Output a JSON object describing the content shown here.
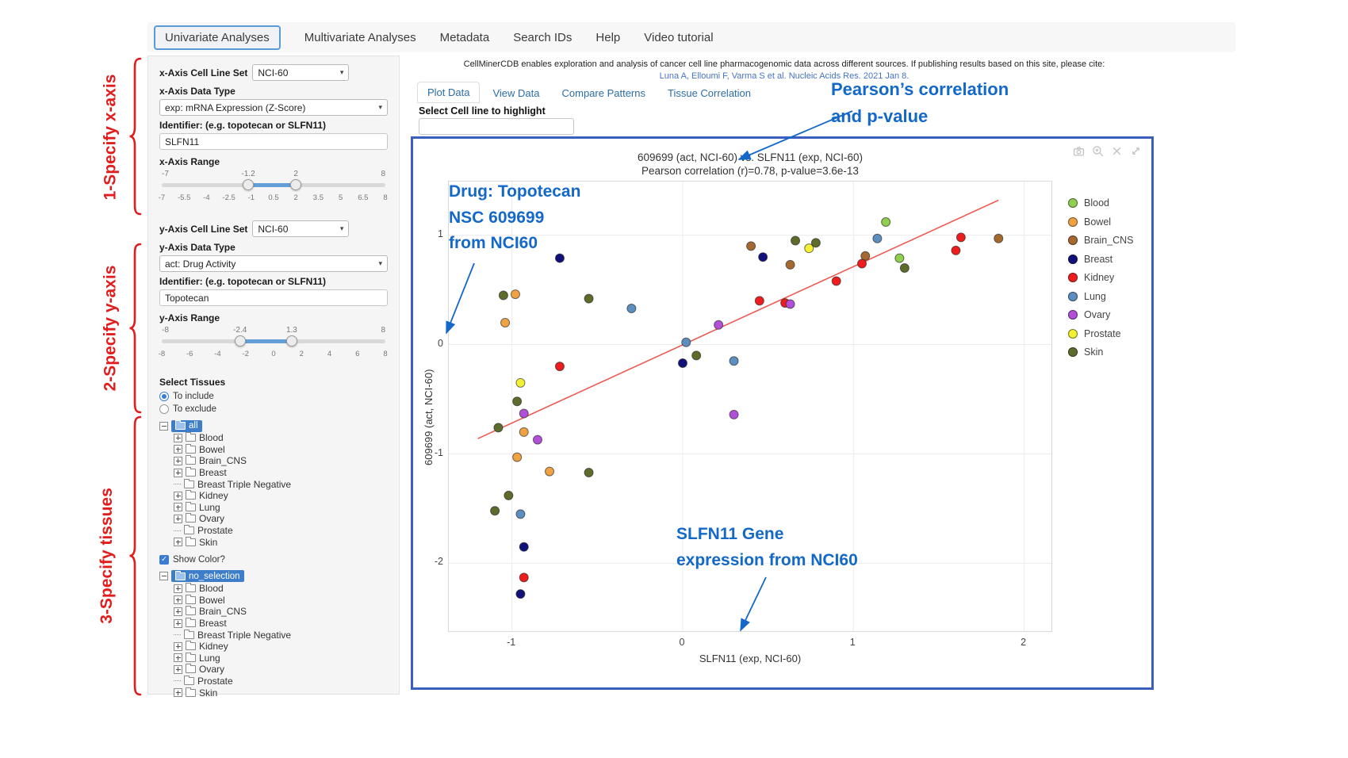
{
  "nav": {
    "items": [
      {
        "label": "Univariate Analyses",
        "active": true
      },
      {
        "label": "Multivariate Analyses",
        "active": false
      },
      {
        "label": "Metadata",
        "active": false
      },
      {
        "label": "Search IDs",
        "active": false
      },
      {
        "label": "Help",
        "active": false
      },
      {
        "label": "Video tutorial",
        "active": false
      }
    ]
  },
  "sidebar": {
    "x_axis": {
      "cell_line_set_label": "x-Axis Cell Line Set",
      "cell_line_set_value": "NCI-60",
      "data_type_label": "x-Axis Data Type",
      "data_type_value": "exp: mRNA Expression (Z-Score)",
      "identifier_label": "Identifier: (e.g. topotecan or SLFN11)",
      "identifier_value": "SLFN11",
      "range_label": "x-Axis Range",
      "range_min": -7,
      "range_max": 8,
      "range_low": -1.2,
      "range_high": 2,
      "ticks": [
        "-7",
        "-5.5",
        "-4",
        "-2.5",
        "-1",
        "0.5",
        "2",
        "3.5",
        "5",
        "6.5",
        "8"
      ]
    },
    "y_axis": {
      "cell_line_set_label": "y-Axis Cell Line Set",
      "cell_line_set_value": "NCI-60",
      "data_type_label": "y-Axis Data Type",
      "data_type_value": "act: Drug Activity",
      "identifier_label": "Identifier: (e.g. topotecan or SLFN11)",
      "identifier_value": "Topotecan",
      "range_label": "y-Axis Range",
      "range_min": -8,
      "range_max": 8,
      "range_low": -2.4,
      "range_high": 1.3,
      "ticks": [
        "-8",
        "-6",
        "-4",
        "-2",
        "0",
        "2",
        "4",
        "6",
        "8"
      ]
    },
    "tissue_section": {
      "label": "Select Tissues",
      "radio_include": "To include",
      "radio_exclude": "To exclude",
      "include_selected": true,
      "show_color_label": "Show Color?",
      "show_color_checked": true
    },
    "include_tree": {
      "root": "all",
      "children": [
        {
          "label": "Blood",
          "expandable": true
        },
        {
          "label": "Bowel",
          "expandable": true
        },
        {
          "label": "Brain_CNS",
          "expandable": true
        },
        {
          "label": "Breast",
          "expandable": true
        },
        {
          "label": "Breast Triple Negative",
          "expandable": false
        },
        {
          "label": "Kidney",
          "expandable": true
        },
        {
          "label": "Lung",
          "expandable": true
        },
        {
          "label": "Ovary",
          "expandable": true
        },
        {
          "label": "Prostate",
          "expandable": false
        },
        {
          "label": "Skin",
          "expandable": true
        }
      ]
    },
    "exclude_tree": {
      "root": "no_selection",
      "children": [
        {
          "label": "Blood",
          "expandable": true
        },
        {
          "label": "Bowel",
          "expandable": true
        },
        {
          "label": "Brain_CNS",
          "expandable": true
        },
        {
          "label": "Breast",
          "expandable": true
        },
        {
          "label": "Breast Triple Negative",
          "expandable": false
        },
        {
          "label": "Kidney",
          "expandable": true
        },
        {
          "label": "Lung",
          "expandable": true
        },
        {
          "label": "Ovary",
          "expandable": true
        },
        {
          "label": "Prostate",
          "expandable": false
        },
        {
          "label": "Skin",
          "expandable": true
        }
      ]
    }
  },
  "main": {
    "citation": "CellMinerCDB enables exploration and analysis of cancer cell line pharmacogenomic data across different sources. If publishing results based on this site, please cite:",
    "citation_link": "Luna A, Elloumi F, Varma S et al. Nucleic Acids Res. 2021 Jan 8.",
    "tabs": [
      {
        "label": "Plot Data",
        "active": true
      },
      {
        "label": "View Data",
        "active": false
      },
      {
        "label": "Compare Patterns",
        "active": false
      },
      {
        "label": "Tissue Correlation",
        "active": false
      }
    ],
    "highlight_label": "Select Cell line to highlight",
    "highlight_value": "",
    "plot_toolbar_icons": [
      "camera",
      "zoom-in",
      "close",
      "pan"
    ]
  },
  "annotations": {
    "red_color": "#e11d1d",
    "blue_color": "#1468c8",
    "red": [
      {
        "label": "1-Specify x-axis"
      },
      {
        "label": "2-Specify y-axis"
      },
      {
        "label": "3-Specify tissues"
      }
    ],
    "blue": [
      {
        "lines": [
          "Pearson’s correlation",
          "and p-value"
        ]
      },
      {
        "lines": [
          "Drug: Topotecan",
          "NSC 609699",
          "from NCI60"
        ]
      },
      {
        "lines": [
          "SLFN11 Gene",
          "expression from NCI60"
        ]
      }
    ]
  },
  "chart_data": {
    "type": "scatter",
    "title": "609699 (act, NCI-60) vs. SLFN11 (exp, NCI-60)",
    "subtitle": "Pearson correlation (r)=0.78, p-value=3.6e-13",
    "xlabel": "SLFN11 (exp, NCI-60)",
    "ylabel": "609699 (act, NCI-60)",
    "xlim": [
      -1.37,
      2.16
    ],
    "ylim": [
      -2.62,
      1.49
    ],
    "xticks": [
      -1,
      0,
      1,
      2
    ],
    "yticks": [
      -2,
      -1,
      0,
      1
    ],
    "grid": true,
    "legend_position": "right",
    "pearson_r": 0.78,
    "p_value": "3.6e-13",
    "regression_line": {
      "color": "#ee5a52",
      "x1": -1.2,
      "y1": -0.86,
      "x2": 1.85,
      "y2": 1.32
    },
    "series": [
      {
        "name": "Blood",
        "color": "#8fce4e",
        "points": [
          [
            1.19,
            1.12
          ],
          [
            1.27,
            0.79
          ]
        ]
      },
      {
        "name": "Bowel",
        "color": "#f0a243",
        "points": [
          [
            -0.98,
            0.46
          ],
          [
            -1.04,
            0.2
          ],
          [
            -0.93,
            -0.8
          ],
          [
            -0.97,
            -1.03
          ],
          [
            -0.78,
            -1.16
          ]
        ]
      },
      {
        "name": "Brain_CNS",
        "color": "#a5692f",
        "points": [
          [
            0.4,
            0.9
          ],
          [
            0.63,
            0.73
          ],
          [
            1.07,
            0.81
          ],
          [
            1.85,
            0.97
          ]
        ]
      },
      {
        "name": "Breast",
        "color": "#11117a",
        "points": [
          [
            -0.72,
            0.79
          ],
          [
            0.47,
            0.8
          ],
          [
            0.0,
            -0.17
          ],
          [
            -0.93,
            -1.85
          ],
          [
            -0.95,
            -2.28
          ]
        ]
      },
      {
        "name": "Kidney",
        "color": "#ee1c1c",
        "points": [
          [
            -0.72,
            -0.2
          ],
          [
            0.45,
            0.4
          ],
          [
            0.6,
            0.38
          ],
          [
            0.9,
            0.58
          ],
          [
            1.05,
            0.74
          ],
          [
            1.6,
            0.86
          ],
          [
            1.63,
            0.98
          ],
          [
            -0.93,
            -2.13
          ]
        ]
      },
      {
        "name": "Lung",
        "color": "#5b8fc0",
        "points": [
          [
            -0.3,
            0.33
          ],
          [
            0.02,
            0.02
          ],
          [
            0.3,
            -0.15
          ],
          [
            1.14,
            0.97
          ],
          [
            -0.95,
            -1.55
          ]
        ]
      },
      {
        "name": "Ovary",
        "color": "#b14fd8",
        "points": [
          [
            -0.93,
            -0.63
          ],
          [
            -0.85,
            -0.87
          ],
          [
            0.3,
            -0.64
          ],
          [
            0.63,
            0.37
          ],
          [
            0.21,
            0.18
          ]
        ]
      },
      {
        "name": "Prostate",
        "color": "#f4f032",
        "points": [
          [
            -0.95,
            -0.35
          ],
          [
            0.74,
            0.88
          ]
        ]
      },
      {
        "name": "Skin",
        "color": "#5d6b2b",
        "points": [
          [
            -1.05,
            0.45
          ],
          [
            -0.55,
            0.42
          ],
          [
            -0.97,
            -0.52
          ],
          [
            -1.08,
            -0.76
          ],
          [
            -0.55,
            -1.17
          ],
          [
            -1.02,
            -1.38
          ],
          [
            -1.1,
            -1.52
          ],
          [
            0.08,
            -0.1
          ],
          [
            0.66,
            0.95
          ],
          [
            0.78,
            0.93
          ],
          [
            1.3,
            0.7
          ]
        ]
      }
    ]
  }
}
